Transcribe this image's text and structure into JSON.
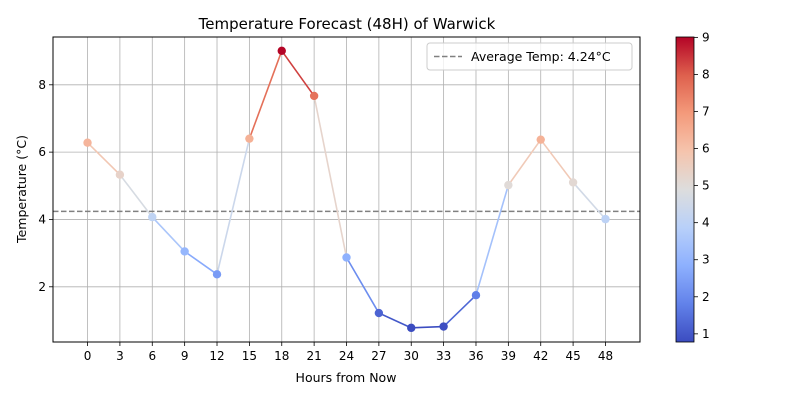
{
  "chart_data": {
    "type": "line",
    "title": "Temperature Forecast (48H) of Warwick",
    "xlabel": "Hours from Now",
    "ylabel": "Temperature (°C)",
    "x": [
      0,
      3,
      6,
      9,
      12,
      15,
      18,
      21,
      24,
      27,
      30,
      33,
      36,
      39,
      42,
      45,
      48
    ],
    "y": [
      6.28,
      5.33,
      4.07,
      3.05,
      2.37,
      6.4,
      9.01,
      7.67,
      2.87,
      1.22,
      0.78,
      0.82,
      1.75,
      5.02,
      6.37,
      5.1,
      4.01
    ],
    "x_ticks": [
      0,
      3,
      6,
      9,
      12,
      15,
      18,
      21,
      24,
      27,
      30,
      33,
      36,
      39,
      42,
      45,
      48
    ],
    "y_ticks": [
      2,
      4,
      6,
      8
    ],
    "xlim": [
      -3.2,
      51.2
    ],
    "ylim": [
      0.36,
      9.42
    ],
    "grid": true,
    "average_line": {
      "value": 4.24,
      "label": "Average Temp: 4.24°C",
      "color": "#808080",
      "style": "dashed"
    },
    "legend_position": "top-right",
    "colormap": "coolwarm",
    "colorbar": {
      "min": 0.78,
      "max": 9.01,
      "ticks": [
        1,
        2,
        3,
        4,
        5,
        6,
        7,
        8,
        9
      ]
    }
  }
}
